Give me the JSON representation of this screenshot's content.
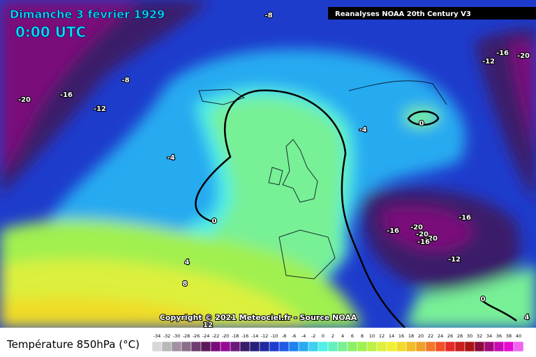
{
  "map": {
    "title": "Dimanche 3 février 1929",
    "time": "0:00 UTC",
    "source_banner": "Reanalyses NOAA 20th Century V3",
    "copyright": "Copyright © 2021 Meteociel.fr - Source NOAA",
    "contour_labels": [
      -8,
      -16,
      -20,
      -12,
      -8,
      -16,
      -12,
      -20,
      -4,
      0,
      -4,
      0,
      -16,
      -20,
      -16,
      -20,
      -20,
      -16,
      -12,
      4,
      8,
      0,
      4,
      12
    ],
    "legend": {
      "title": "Température 850hPa (°C)",
      "ticks": [
        -34,
        -32,
        -30,
        -28,
        -26,
        -24,
        -22,
        -20,
        -18,
        -16,
        -14,
        -12,
        -10,
        -8,
        -6,
        -4,
        -2,
        0,
        2,
        4,
        6,
        8,
        10,
        12,
        14,
        16,
        18,
        20,
        22,
        24,
        26,
        28,
        30,
        32,
        34,
        36,
        38,
        40
      ],
      "colors": [
        "#d8d8d8",
        "#b8b8b8",
        "#a090a0",
        "#8a6e8a",
        "#6e3e6e",
        "#5a1a5a",
        "#7a0a7a",
        "#960a96",
        "#6a1a7a",
        "#3a1a6a",
        "#26207a",
        "#1e28a0",
        "#1e3ccc",
        "#1e5ae6",
        "#1e82f0",
        "#28aaf0",
        "#3cd2f0",
        "#50f0e6",
        "#64f0be",
        "#78f096",
        "#8cf064",
        "#a0f050",
        "#bef046",
        "#dcf03c",
        "#f0f032",
        "#f0dc28",
        "#f0be28",
        "#f0a028",
        "#f07828",
        "#f05028",
        "#e62828",
        "#c81e1e",
        "#aa1414",
        "#8c0a3c",
        "#a00a78",
        "#c80ab4",
        "#e60ad2",
        "#f064f0"
      ]
    }
  }
}
